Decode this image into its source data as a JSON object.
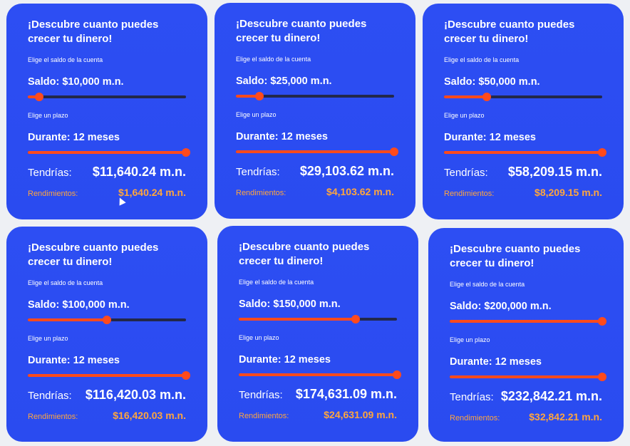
{
  "cards": [
    {
      "title": "¡Descubre cuanto puedes crecer tu dinero!",
      "balance_hint": "Elige el saldo de la cuenta",
      "balance_line": "Saldo: $10,000 m.n.",
      "balance_level": 0.07,
      "term_hint": "Elige un plazo",
      "term_line": "Durante: 12 meses",
      "term_level": 1.0,
      "result_label": "Tendrías:",
      "result_value": "$11,640.24 m.n.",
      "yield_label": "Rendimientos:",
      "yield_value": "$1,640.24 m.n."
    },
    {
      "title": "¡Descubre cuanto puedes crecer tu dinero!",
      "balance_hint": "Elige el saldo de la cuenta",
      "balance_line": "Saldo: $25,000 m.n.",
      "balance_level": 0.15,
      "term_hint": "Elige un plazo",
      "term_line": "Durante: 12 meses",
      "term_level": 1.0,
      "result_label": "Tendrías:",
      "result_value": "$29,103.62 m.n.",
      "yield_label": "Rendimientos:",
      "yield_value": "$4,103.62 m.n."
    },
    {
      "title": "¡Descubre cuanto puedes crecer tu dinero!",
      "balance_hint": "Elige el saldo de la cuenta",
      "balance_line": "Saldo: $50,000 m.n.",
      "balance_level": 0.27,
      "term_hint": "Elige un plazo",
      "term_line": "Durante: 12 meses",
      "term_level": 1.0,
      "result_label": "Tendrías:",
      "result_value": "$58,209.15 m.n.",
      "yield_label": "Rendimientos:",
      "yield_value": "$8,209.15 m.n."
    },
    {
      "title": "¡Descubre cuanto puedes crecer tu dinero!",
      "balance_hint": "Elige el saldo de la cuenta",
      "balance_line": "Saldo: $100,000 m.n.",
      "balance_level": 0.5,
      "term_hint": "Elige un plazo",
      "term_line": "Durante: 12 meses",
      "term_level": 1.0,
      "result_label": "Tendrías:",
      "result_value": "$116,420.03 m.n.",
      "yield_label": "Rendimientos:",
      "yield_value": "$16,420.03 m.n."
    },
    {
      "title": "¡Descubre cuanto puedes crecer tu dinero!",
      "balance_hint": "Elige el saldo de la cuenta",
      "balance_line": "Saldo: $150,000 m.n.",
      "balance_level": 0.74,
      "term_hint": "Elige un plazo",
      "term_line": "Durante: 12 meses",
      "term_level": 1.0,
      "result_label": "Tendrías:",
      "result_value": "$174,631.09 m.n.",
      "yield_label": "Rendimientos:",
      "yield_value": "$24,631.09 m.n."
    },
    {
      "title": "¡Descubre cuanto puedes crecer tu dinero!",
      "balance_hint": "Elige el saldo de la cuenta",
      "balance_line": "Saldo: $200,000 m.n.",
      "balance_level": 1.0,
      "term_hint": "Elige un plazo",
      "term_line": "Durante: 12 meses",
      "term_level": 1.0,
      "result_label": "Tendrías:",
      "result_value": "$232,842.21 m.n.",
      "yield_label": "Rendimientos:",
      "yield_value": "$32,842.21 m.n."
    }
  ],
  "colors": {
    "card_bg": "#2d4ef3",
    "slider_fill": "#ff4a1c",
    "slider_track": "#22284a",
    "yield_text": "#ffa63d"
  }
}
